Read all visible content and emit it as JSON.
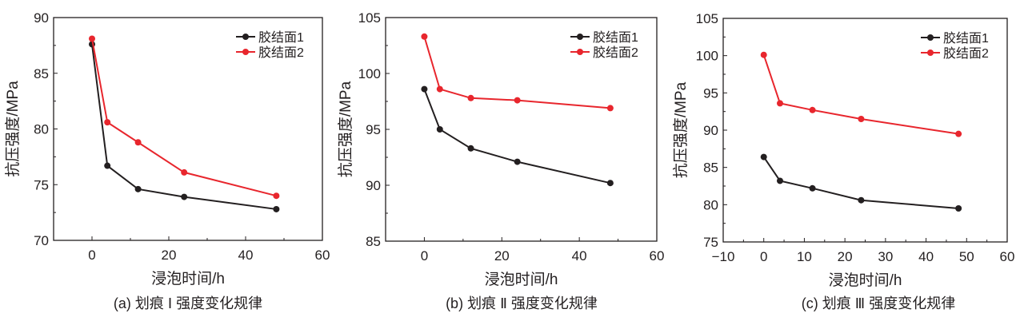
{
  "chart_data": [
    {
      "type": "line",
      "caption": "(a) 划痕 Ⅰ 强度变化规律",
      "xlabel": "浸泡时间/h",
      "ylabel": "抗压强度/MPa",
      "xlim": [
        -10,
        60
      ],
      "ylim": [
        70,
        90
      ],
      "xticks": [
        0,
        20,
        40,
        60
      ],
      "xminor": 10,
      "yticks": [
        70,
        75,
        80,
        85,
        90
      ],
      "legend_position": "top-right",
      "x": [
        0,
        4,
        12,
        24,
        48
      ],
      "series": [
        {
          "name": "胶结面1",
          "color": "#231f20",
          "values": [
            87.6,
            76.7,
            74.6,
            73.9,
            72.8
          ]
        },
        {
          "name": "胶结面2",
          "color": "#e8262d",
          "values": [
            88.1,
            80.6,
            78.8,
            76.1,
            74.0
          ]
        }
      ]
    },
    {
      "type": "line",
      "caption": "(b) 划痕 Ⅱ 强度变化规律",
      "xlabel": "浸泡时间/h",
      "ylabel": "抗压强度/MPa",
      "xlim": [
        -10,
        60
      ],
      "ylim": [
        85,
        105
      ],
      "xticks": [
        0,
        20,
        40,
        60
      ],
      "xminor": 10,
      "yticks": [
        85,
        90,
        95,
        100,
        105
      ],
      "legend_position": "top-right",
      "x": [
        0,
        4,
        12,
        24,
        48
      ],
      "series": [
        {
          "name": "胶结面1",
          "color": "#231f20",
          "values": [
            98.6,
            95.0,
            93.3,
            92.1,
            90.2
          ]
        },
        {
          "name": "胶结面2",
          "color": "#e8262d",
          "values": [
            103.3,
            98.6,
            97.8,
            97.6,
            96.9
          ]
        }
      ]
    },
    {
      "type": "line",
      "caption": "(c) 划痕 Ⅲ 强度变化规律",
      "xlabel": "浸泡时间/h",
      "ylabel": "抗压强度/MPa",
      "xlim": [
        -10,
        60
      ],
      "ylim": [
        75,
        105
      ],
      "xticks": [
        -10,
        0,
        10,
        20,
        30,
        40,
        50,
        60
      ],
      "xtick_labels": [
        "−10",
        "0",
        "10",
        "20",
        "30",
        "40",
        "50",
        "60"
      ],
      "xminor": 5,
      "yticks": [
        75,
        80,
        85,
        90,
        95,
        100,
        105
      ],
      "legend_position": "top-right",
      "x": [
        0,
        4,
        12,
        24,
        48
      ],
      "series": [
        {
          "name": "胶结面1",
          "color": "#231f20",
          "values": [
            86.4,
            83.2,
            82.2,
            80.6,
            79.5
          ]
        },
        {
          "name": "胶结面2",
          "color": "#e8262d",
          "values": [
            100.1,
            93.6,
            92.7,
            91.5,
            89.5
          ]
        }
      ]
    }
  ]
}
